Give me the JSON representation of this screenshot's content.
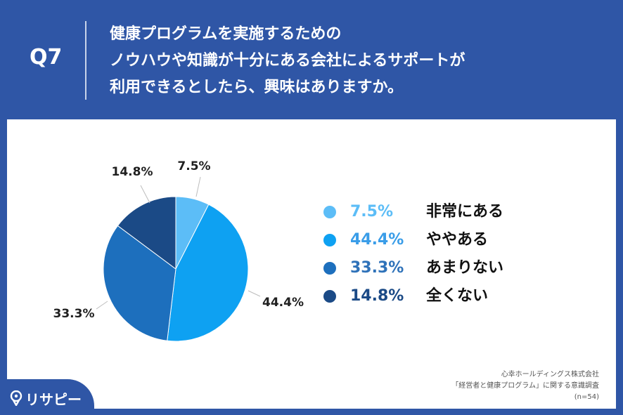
{
  "header": {
    "q_label": "Q7",
    "question_lines": [
      "健康プログラムを実施するための",
      "ノウハウや知識が十分にある会社によるサポートが",
      "利用できるとしたら、興味はありますか。"
    ]
  },
  "chart_data": {
    "type": "pie",
    "slices": [
      {
        "label": "非常にある",
        "value": 7.5,
        "display": "7.5%",
        "color": "#5cbdf7"
      },
      {
        "label": "ややある",
        "value": 44.4,
        "display": "44.4%",
        "color": "#0ea1f2"
      },
      {
        "label": "あまりない",
        "value": 33.3,
        "display": "33.3%",
        "color": "#1d6fbd"
      },
      {
        "label": "全くない",
        "value": 14.8,
        "display": "14.8%",
        "color": "#1b4a86"
      }
    ],
    "legend_value_colors": [
      "#5cbdf7",
      "#3a9de8",
      "#2f72b9",
      "#1b4a86"
    ],
    "legend_placement": "right"
  },
  "source": {
    "lines": [
      "心幸ホールディングス株式会社",
      "「経営者と健康プログラム」に関する意識調査",
      "(n=54)"
    ]
  },
  "logo": {
    "text": "リサピー"
  }
}
